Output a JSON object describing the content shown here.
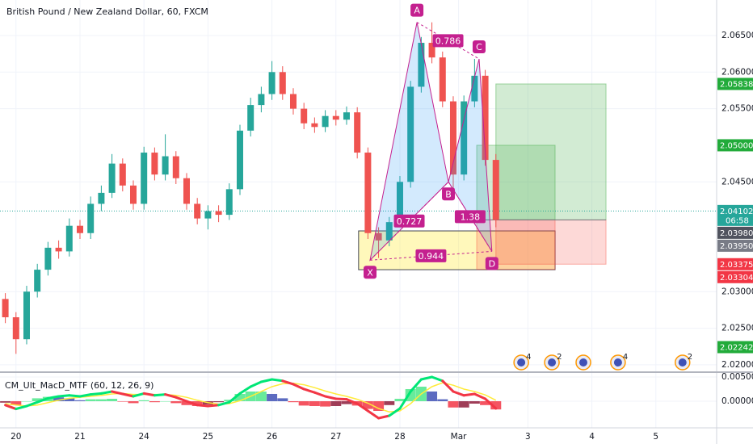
{
  "chart_data": {
    "type": "candlestick",
    "title": "British Pound / New Zealand Dollar, 60, FXCM",
    "up_color": "#26a69a",
    "down_color": "#ef5350",
    "x": [
      2,
      6,
      10,
      14,
      18,
      22,
      26,
      30,
      34,
      38,
      42,
      46,
      50,
      54,
      58,
      62,
      66,
      70,
      74,
      78,
      82,
      86,
      90,
      94,
      98,
      102,
      106,
      110,
      114,
      118,
      122,
      126,
      130,
      134,
      138,
      142,
      146,
      150,
      154,
      158,
      162,
      166,
      170,
      174,
      178,
      182,
      186
    ],
    "ohlc": [
      [
        2.029,
        2.0298,
        2.0257,
        2.0265
      ],
      [
        2.0265,
        2.0272,
        2.0215,
        2.0235
      ],
      [
        2.0235,
        2.0308,
        2.0228,
        2.03
      ],
      [
        2.03,
        2.0338,
        2.0292,
        2.033
      ],
      [
        2.033,
        2.0368,
        2.0322,
        2.036
      ],
      [
        2.036,
        2.037,
        2.0345,
        2.0355
      ],
      [
        2.0355,
        2.04,
        2.0348,
        2.039
      ],
      [
        2.039,
        2.0398,
        2.0372,
        2.038
      ],
      [
        2.038,
        2.043,
        2.0372,
        2.042
      ],
      [
        2.042,
        2.0445,
        2.041,
        2.0435
      ],
      [
        2.0435,
        2.0488,
        2.0428,
        2.0475
      ],
      [
        2.0475,
        2.0482,
        2.0437,
        2.0445
      ],
      [
        2.0445,
        2.0452,
        2.0412,
        2.042
      ],
      [
        2.042,
        2.0498,
        2.0412,
        2.049
      ],
      [
        2.049,
        2.0497,
        2.0452,
        2.046
      ],
      [
        2.046,
        2.0515,
        2.0452,
        2.0485
      ],
      [
        2.0485,
        2.0492,
        2.0447,
        2.0455
      ],
      [
        2.0455,
        2.0462,
        2.0412,
        2.042
      ],
      [
        2.042,
        2.0428,
        2.0392,
        2.04
      ],
      [
        2.04,
        2.0418,
        2.0385,
        2.041
      ],
      [
        2.041,
        2.0418,
        2.0395,
        2.0405
      ],
      [
        2.0405,
        2.0448,
        2.0398,
        2.044
      ],
      [
        2.044,
        2.0528,
        2.0432,
        2.052
      ],
      [
        2.052,
        2.0565,
        2.0512,
        2.0555
      ],
      [
        2.0555,
        2.058,
        2.0545,
        2.057
      ],
      [
        2.057,
        2.0615,
        2.0562,
        2.06
      ],
      [
        2.06,
        2.0608,
        2.0562,
        2.057
      ],
      [
        2.057,
        2.0578,
        2.0542,
        2.055
      ],
      [
        2.055,
        2.0558,
        2.0522,
        2.053
      ],
      [
        2.053,
        2.0538,
        2.0517,
        2.0525
      ],
      [
        2.0525,
        2.0548,
        2.0518,
        2.054
      ],
      [
        2.054,
        2.0548,
        2.0527,
        2.0535
      ],
      [
        2.0535,
        2.0553,
        2.0528,
        2.0545
      ],
      [
        2.0545,
        2.0552,
        2.0482,
        2.049
      ],
      [
        2.049,
        2.0497,
        2.0372,
        2.038
      ],
      [
        2.038,
        2.0388,
        2.0346,
        2.037
      ],
      [
        2.037,
        2.0402,
        2.0362,
        2.0395
      ],
      [
        2.0395,
        2.0458,
        2.0388,
        2.045
      ],
      [
        2.045,
        2.0588,
        2.0442,
        2.058
      ],
      [
        2.058,
        2.0648,
        2.0572,
        2.064
      ],
      [
        2.064,
        2.0668,
        2.0612,
        2.062
      ],
      [
        2.062,
        2.0628,
        2.0552,
        2.056
      ],
      [
        2.056,
        2.0567,
        2.044,
        2.046
      ],
      [
        2.046,
        2.0568,
        2.0452,
        2.056
      ],
      [
        2.056,
        2.0618,
        2.0552,
        2.0595
      ],
      [
        2.0595,
        2.0603,
        2.0472,
        2.048
      ],
      [
        2.048,
        2.0488,
        2.0388,
        2.0398
      ]
    ],
    "xlim": [
      0,
      268.8
    ],
    "ylim": [
      2.01911,
      2.06985
    ],
    "xticks": [
      {
        "value": 6,
        "label": "20"
      },
      {
        "value": 30,
        "label": "21"
      },
      {
        "value": 54,
        "label": "24"
      },
      {
        "value": 78,
        "label": "25"
      },
      {
        "value": 102,
        "label": "26"
      },
      {
        "value": 126,
        "label": "27"
      },
      {
        "value": 150,
        "label": "28"
      },
      {
        "value": 172,
        "label": "Mar"
      },
      {
        "value": 198,
        "label": "3"
      },
      {
        "value": 222,
        "label": "4"
      },
      {
        "value": 246,
        "label": "5"
      }
    ],
    "yticks": [
      {
        "value": 2.065,
        "label": "2.06500"
      },
      {
        "value": 2.06,
        "label": "2.06000"
      },
      {
        "value": 2.055,
        "label": "2.05500"
      },
      {
        "value": 2.045,
        "label": "2.04500"
      },
      {
        "value": 2.03,
        "label": "2.03000"
      },
      {
        "value": 2.025,
        "label": "2.02500"
      },
      {
        "value": 2.02,
        "label": "2.02000"
      }
    ],
    "grid": true,
    "current_price": 2.04102,
    "price_labels": [
      {
        "value": 2.05838,
        "label": "2.05838",
        "color": "#22ab3a"
      },
      {
        "value": 2.05,
        "label": "2.05000",
        "color": "#22ab3a"
      },
      {
        "value": 2.04102,
        "label": "2.04102",
        "color": "#26a69a",
        "timer": "06:58"
      },
      {
        "value": 2.0398,
        "label": "2.03980",
        "color": "#50535e"
      },
      {
        "value": 2.0395,
        "label": "2.03950",
        "color": "#787b86"
      },
      {
        "value": 2.03375,
        "label": "2.03375",
        "color": "#f23645"
      },
      {
        "value": 2.03304,
        "label": "2.03304",
        "color": "#f23645"
      },
      {
        "value": 2.02242,
        "label": "2.02242",
        "color": "#22ab3a"
      }
    ],
    "pattern": {
      "color": "#c4208f",
      "points": [
        {
          "label": "X",
          "x": 138.8,
          "price": 2.0343
        },
        {
          "label": "A",
          "x": 156.4,
          "price": 2.0668
        },
        {
          "label": "B",
          "x": 168.2,
          "price": 2.045
        },
        {
          "label": "C",
          "x": 179.7,
          "price": 2.0618
        },
        {
          "label": "D",
          "x": 184.5,
          "price": 2.0355
        }
      ],
      "ratios": [
        0.727,
        0.786,
        1.38,
        0.944
      ]
    },
    "zone": {
      "x": [
        134.5,
        208.2
      ],
      "price": [
        2.033,
        2.0383
      ]
    },
    "positions": [
      {
        "x": [
          178.8,
          208.2
        ],
        "entry": 2.0398,
        "target": 2.05,
        "stop": 2.03304
      },
      {
        "x": [
          186,
          227.3
        ],
        "entry": 2.0398,
        "target": 2.05838,
        "stop": 2.03375
      }
    ],
    "events": [
      {
        "x": 195.5,
        "label": "4"
      },
      {
        "x": 207,
        "label": "2"
      },
      {
        "x": 218.8
      },
      {
        "x": 231.8,
        "label": "4"
      },
      {
        "x": 256,
        "label": "2"
      }
    ],
    "indicator": {
      "title": "CM_Ult_MacD_MTF (60, 12, 26, 9)",
      "ylim": [
        -0.0055,
        0.00583
      ],
      "yticks": [
        {
          "value": 0.005,
          "label": "0.00500"
        },
        {
          "value": 0,
          "label": "0.00000"
        }
      ],
      "macd": [
        -0.0008,
        -0.0016,
        -0.001,
        -0.0002,
        0.0006,
        0.001,
        0.0012,
        0.001,
        0.0014,
        0.0016,
        0.002,
        0.0015,
        0.001,
        0.0016,
        0.0012,
        0.0014,
        0.0008,
        0.0,
        -0.0008,
        -0.001,
        -0.0008,
        -0.0002,
        0.0016,
        0.003,
        0.004,
        0.0045,
        0.0042,
        0.0035,
        0.0025,
        0.0018,
        0.001,
        0.0005,
        0.0004,
        -0.0005,
        -0.002,
        -0.0035,
        -0.003,
        -0.0015,
        0.002,
        0.0045,
        0.005,
        0.0042,
        0.002,
        0.0012,
        0.0015,
        0.0005,
        -0.0015
      ],
      "signal": [
        -0.0005,
        -0.0008,
        -0.001,
        -0.0008,
        -0.0003,
        0.0002,
        0.0006,
        0.0008,
        0.001,
        0.0012,
        0.0015,
        0.0016,
        0.0014,
        0.0014,
        0.0014,
        0.0014,
        0.0012,
        0.0008,
        0.0002,
        -0.0003,
        -0.0006,
        -0.0005,
        0.0001,
        0.001,
        0.002,
        0.003,
        0.0036,
        0.0037,
        0.0034,
        0.0028,
        0.0021,
        0.0015,
        0.001,
        0.0004,
        -0.0004,
        -0.0015,
        -0.0022,
        -0.002,
        -0.0005,
        0.0015,
        0.003,
        0.0038,
        0.0033,
        0.0025,
        0.002,
        0.0013,
        0.0002
      ],
      "histogram": [
        -0.0003,
        -0.0008,
        0.0,
        0.0006,
        0.0009,
        0.0008,
        0.0006,
        0.0002,
        0.0004,
        0.0004,
        0.0005,
        -0.0001,
        -0.0004,
        0.0002,
        -0.0002,
        0.0,
        -0.0004,
        -0.0008,
        -0.001,
        -0.0007,
        -0.0002,
        0.0003,
        0.0015,
        0.002,
        0.002,
        0.0015,
        0.0006,
        -0.0002,
        -0.0009,
        -0.001,
        -0.0011,
        -0.001,
        -0.0006,
        -0.0009,
        -0.0016,
        -0.002,
        -0.0008,
        0.0005,
        0.0025,
        0.003,
        0.002,
        0.0004,
        -0.0013,
        -0.0013,
        -0.0005,
        -0.0008,
        -0.0017
      ],
      "colors": {
        "up_rising": "#4ee88a",
        "up_falling": "#3f51b5",
        "down_falling": "#f23645",
        "down_rising": "#8e1b3a",
        "macd_up": "#00e676",
        "macd_down": "#f23645",
        "signal": "#ffeb3b"
      }
    }
  }
}
